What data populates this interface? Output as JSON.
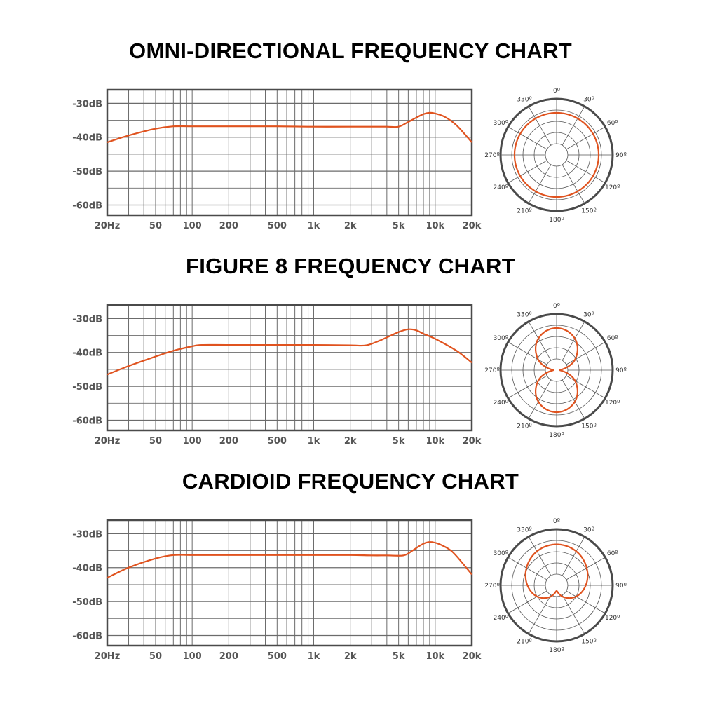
{
  "colors": {
    "curve": "#e0531f",
    "grid": "#6b6b6b",
    "axis": "#4a4a4a",
    "tick_text": "#555555"
  },
  "x_ticks": [
    "20Hz",
    "50",
    "100",
    "200",
    "500",
    "1k",
    "2k",
    "5k",
    "10k",
    "20k"
  ],
  "y_ticks": [
    "-30dB",
    "-40dB",
    "-50dB",
    "-60dB"
  ],
  "polar_ticks": [
    "0º",
    "30º",
    "60º",
    "90º",
    "120º",
    "150º",
    "180º",
    "210º",
    "240º",
    "270º",
    "300º",
    "330º"
  ],
  "chart_data": [
    {
      "title": "OMNI-DIRECTIONAL FREQUENCY CHART",
      "type": "line",
      "xscale": "log",
      "xlim": [
        20,
        20000
      ],
      "ylim": [
        -63,
        -26
      ],
      "x": [
        20,
        30,
        50,
        70,
        100,
        200,
        500,
        1000,
        2000,
        3000,
        4000,
        5000,
        6000,
        7000,
        8000,
        9000,
        10000,
        12000,
        15000,
        20000
      ],
      "y": [
        -41.5,
        -39.5,
        -37.5,
        -36.8,
        -36.8,
        -36.8,
        -36.8,
        -36.9,
        -36.9,
        -36.9,
        -36.9,
        -36.9,
        -35.5,
        -34.2,
        -33.2,
        -32.8,
        -33.0,
        -34.0,
        -36.5,
        -41.5
      ],
      "polar": {
        "pattern": "omni",
        "values": [
          0.75,
          0.75,
          0.75,
          0.75,
          0.75,
          0.75,
          0.75,
          0.75,
          0.75,
          0.75,
          0.75,
          0.75
        ]
      }
    },
    {
      "title": "FIGURE 8 FREQUENCY CHART",
      "type": "line",
      "xscale": "log",
      "xlim": [
        20,
        20000
      ],
      "ylim": [
        -63,
        -26
      ],
      "x": [
        20,
        30,
        50,
        70,
        100,
        120,
        200,
        500,
        1000,
        2000,
        2700,
        3500,
        5000,
        6000,
        7000,
        8000,
        10000,
        15000,
        20000
      ],
      "y": [
        -46.5,
        -44.0,
        -41.2,
        -39.5,
        -38.2,
        -37.8,
        -37.8,
        -37.8,
        -37.8,
        -37.9,
        -37.9,
        -36.5,
        -34.0,
        -33.2,
        -33.5,
        -34.5,
        -36.0,
        -39.5,
        -43.0
      ],
      "polar": {
        "pattern": "figure-8",
        "values": [
          0.75,
          0.65,
          0.38,
          0.06,
          0.38,
          0.65,
          0.75,
          0.65,
          0.38,
          0.06,
          0.38,
          0.65
        ]
      }
    },
    {
      "title": "CARDIOID FREQUENCY CHART",
      "type": "line",
      "xscale": "log",
      "xlim": [
        20,
        20000
      ],
      "ylim": [
        -63,
        -26
      ],
      "x": [
        20,
        30,
        50,
        70,
        100,
        200,
        500,
        1000,
        2000,
        3000,
        4000,
        5500,
        6500,
        7500,
        8500,
        9500,
        11000,
        14000,
        20000
      ],
      "y": [
        -43.0,
        -40.0,
        -37.3,
        -36.3,
        -36.3,
        -36.3,
        -36.3,
        -36.3,
        -36.3,
        -36.4,
        -36.4,
        -36.4,
        -35.0,
        -33.5,
        -32.6,
        -32.5,
        -33.2,
        -35.5,
        -42.0
      ],
      "polar": {
        "pattern": "cardioid",
        "values": [
          0.73,
          0.7,
          0.62,
          0.52,
          0.4,
          0.24,
          0.1,
          0.24,
          0.4,
          0.52,
          0.62,
          0.7
        ]
      }
    }
  ]
}
